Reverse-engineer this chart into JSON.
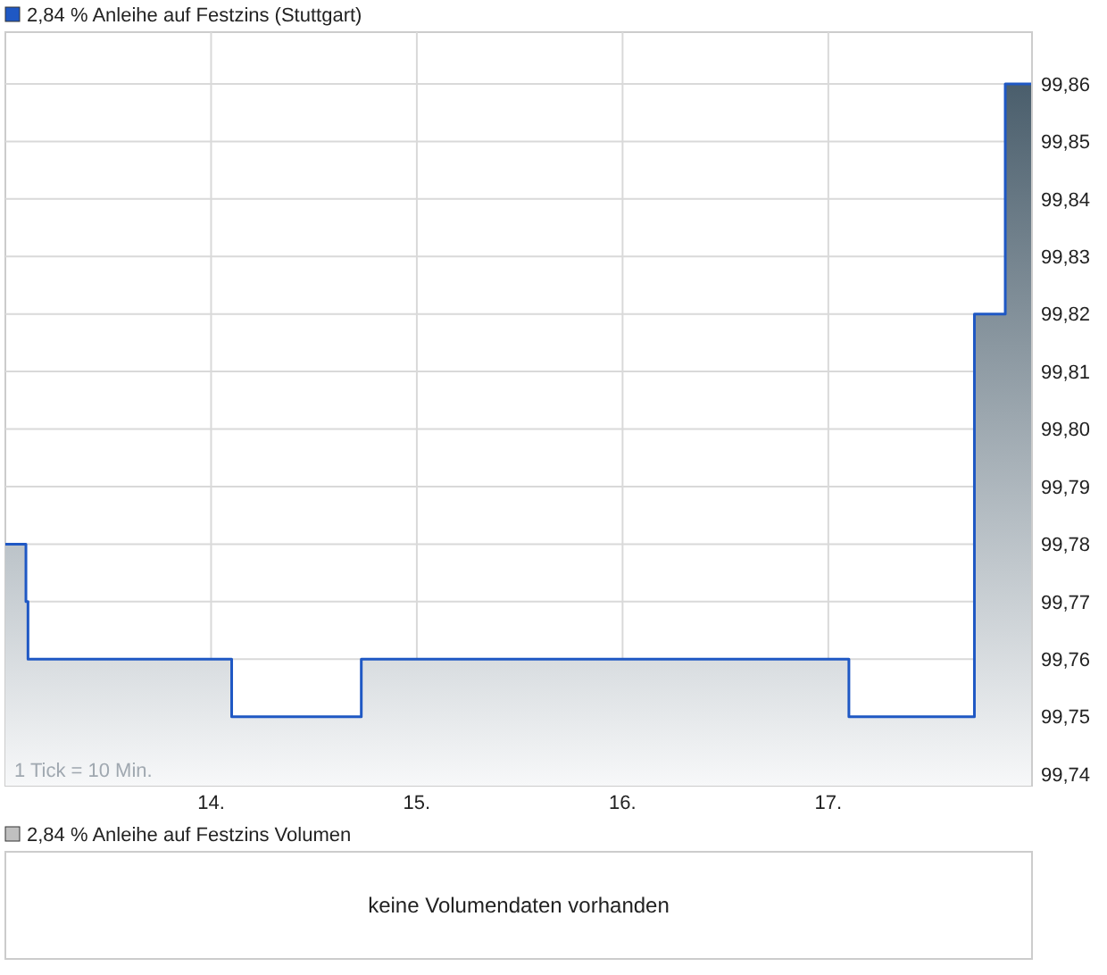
{
  "chart_data": [
    {
      "type": "area",
      "x": [
        13.0,
        13.1,
        13.1,
        13.11,
        13.11,
        14.1,
        14.1,
        14.73,
        14.73,
        17.1,
        17.1,
        17.71,
        17.71,
        17.86,
        17.86,
        17.99
      ],
      "series": [
        {
          "name": "2,84 % Anleihe auf Festzins (Stuttgart)",
          "color": "#1f58c4",
          "values": [
            99.78,
            99.78,
            99.77,
            99.77,
            99.76,
            99.76,
            99.75,
            99.75,
            99.76,
            99.76,
            99.75,
            99.75,
            99.82,
            99.82,
            99.86,
            99.86
          ]
        }
      ],
      "xlim": [
        13.0,
        17.99
      ],
      "xticks": [
        {
          "value": 14,
          "label": "14."
        },
        {
          "value": 15,
          "label": "15."
        },
        {
          "value": 16,
          "label": "16."
        },
        {
          "value": 17,
          "label": "17."
        }
      ],
      "ylim": [
        99.738,
        99.869
      ],
      "yticks": [
        {
          "value": 99.74,
          "label": "99,74"
        },
        {
          "value": 99.75,
          "label": "99,75"
        },
        {
          "value": 99.76,
          "label": "99,76"
        },
        {
          "value": 99.77,
          "label": "99,77"
        },
        {
          "value": 99.78,
          "label": "99,78"
        },
        {
          "value": 99.79,
          "label": "99,79"
        },
        {
          "value": 99.8,
          "label": "99,80"
        },
        {
          "value": 99.81,
          "label": "99,81"
        },
        {
          "value": 99.82,
          "label": "99,82"
        },
        {
          "value": 99.83,
          "label": "99,83"
        },
        {
          "value": 99.84,
          "label": "99,84"
        },
        {
          "value": 99.85,
          "label": "99,85"
        },
        {
          "value": 99.86,
          "label": "99,86"
        }
      ],
      "grid": true,
      "legend": "top left",
      "annotations": [
        "1 Tick = 10 Min."
      ]
    },
    {
      "type": "other",
      "title": "2,84 % Anleihe auf Festzins Volumen",
      "annotations": [
        "keine Volumendaten vorhanden"
      ]
    }
  ]
}
